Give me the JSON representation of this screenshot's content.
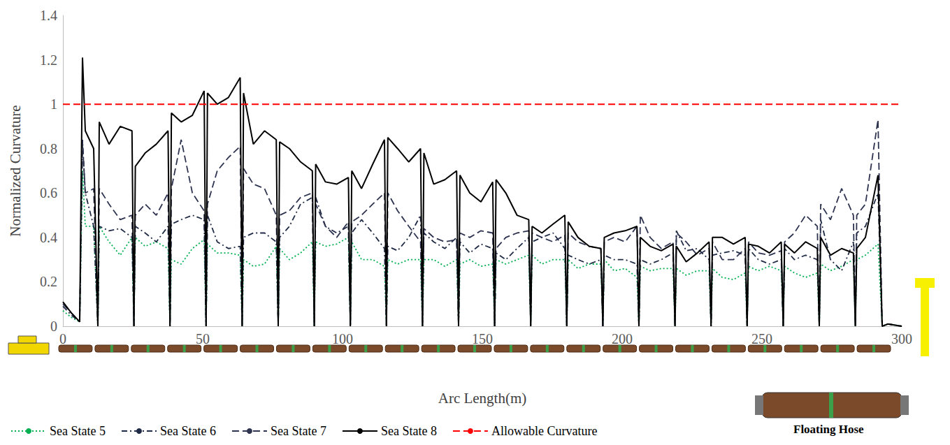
{
  "chart_data": {
    "type": "line",
    "x_label": "Arc Length(m)",
    "y_label": "Normalized Curvature",
    "annotation": "Floating Hose",
    "xlim": [
      0,
      300
    ],
    "xticks": [
      0,
      50,
      100,
      150,
      200,
      250,
      300
    ],
    "ylim": [
      0,
      1.4
    ],
    "yticks": [
      0,
      0.2,
      0.4,
      0.6,
      0.8,
      1,
      1.2,
      1.4
    ],
    "grid": false,
    "legend": "bottom",
    "x": [
      0,
      3,
      6,
      7,
      8,
      11,
      12.5,
      13,
      16.5,
      20.5,
      24.7,
      25.4,
      25.9,
      29.4,
      33.4,
      37.6,
      38.3,
      38.8,
      42.3,
      46.3,
      50.5,
      51.2,
      51.7,
      55.2,
      59.2,
      63.4,
      64.1,
      64.6,
      68.1,
      72.1,
      76.3,
      77,
      77.5,
      81,
      85,
      89.2,
      89.9,
      90.4,
      93.9,
      97.9,
      102.1,
      102.8,
      103.3,
      106.8,
      110.8,
      115,
      115.7,
      116.2,
      119.7,
      123.7,
      127.9,
      128.6,
      129.1,
      132.6,
      136.6,
      140.8,
      141.5,
      142,
      145.5,
      149.5,
      153.7,
      154.4,
      154.9,
      158.4,
      162.4,
      166.6,
      167.3,
      167.8,
      171.3,
      175.3,
      179.5,
      180.2,
      180.7,
      184.2,
      188.2,
      192.4,
      193.1,
      193.6,
      197.1,
      201.1,
      205.3,
      206,
      206.5,
      210,
      214,
      218.2,
      218.9,
      219.4,
      222.9,
      226.9,
      231.1,
      231.8,
      232.3,
      235.8,
      239.8,
      244,
      244.7,
      245.2,
      248.7,
      252.7,
      256.9,
      257.6,
      258.1,
      261.6,
      265.6,
      269.8,
      270.5,
      271,
      274.5,
      278.5,
      282.7,
      283.4,
      283.9,
      287,
      291.5,
      293,
      295,
      300
    ],
    "series": [
      {
        "name": "Sea State 5",
        "color": "#00b050",
        "line_style": "dotted",
        "values": [
          0.07,
          0.04,
          0.02,
          0.7,
          0.45,
          0.45,
          0,
          0.45,
          0.38,
          0.32,
          0.4,
          0,
          0.4,
          0.36,
          0.38,
          0.35,
          0,
          0.3,
          0.28,
          0.35,
          0.39,
          0,
          0.37,
          0.33,
          0.33,
          0.32,
          0,
          0.3,
          0.27,
          0.28,
          0.36,
          0,
          0.35,
          0.3,
          0.33,
          0.38,
          0,
          0.38,
          0.36,
          0.37,
          0.4,
          0,
          0.38,
          0.3,
          0.3,
          0.27,
          0,
          0.3,
          0.28,
          0.3,
          0.3,
          0,
          0.3,
          0.3,
          0.27,
          0.3,
          0,
          0.28,
          0.3,
          0.27,
          0.28,
          0,
          0.3,
          0.28,
          0.3,
          0.32,
          0,
          0.32,
          0.28,
          0.3,
          0.3,
          0,
          0.3,
          0.26,
          0.28,
          0.28,
          0,
          0.3,
          0.25,
          0.26,
          0.22,
          0,
          0.27,
          0.25,
          0.26,
          0.26,
          0,
          0.26,
          0.23,
          0.25,
          0.25,
          0,
          0.26,
          0.22,
          0.21,
          0.24,
          0,
          0.27,
          0.25,
          0.27,
          0.25,
          0,
          0.27,
          0.24,
          0.22,
          0.24,
          0,
          0.28,
          0.25,
          0.27,
          0.3,
          0,
          0.3,
          0.32,
          0.37,
          0,
          0.01,
          0
        ]
      },
      {
        "name": "Sea State 6",
        "color": "#1f2a44",
        "line_style": "dashdot",
        "values": [
          0.09,
          0.05,
          0.02,
          0.84,
          0.6,
          0.45,
          0,
          0.45,
          0.43,
          0.44,
          0.4,
          0,
          0.45,
          0.42,
          0.38,
          0.45,
          0,
          0.46,
          0.48,
          0.5,
          0.48,
          0,
          0.5,
          0.38,
          0.35,
          0.36,
          0,
          0.4,
          0.42,
          0.42,
          0.38,
          0,
          0.4,
          0.45,
          0.55,
          0.58,
          0,
          0.58,
          0.45,
          0.42,
          0.45,
          0,
          0.42,
          0.48,
          0.42,
          0.35,
          0,
          0.36,
          0.34,
          0.4,
          0.5,
          0,
          0.42,
          0.38,
          0.35,
          0.4,
          0,
          0.38,
          0.33,
          0.37,
          0.35,
          0,
          0.33,
          0.3,
          0.35,
          0.4,
          0,
          0.38,
          0.4,
          0.42,
          0.35,
          0,
          0.32,
          0.3,
          0.28,
          0.3,
          0,
          0.32,
          0.3,
          0.3,
          0.28,
          0,
          0.3,
          0.28,
          0.3,
          0.33,
          0,
          0.43,
          0.34,
          0.35,
          0.3,
          0,
          0.32,
          0.33,
          0.34,
          0.32,
          0,
          0.35,
          0.3,
          0.28,
          0.3,
          0,
          0.35,
          0.3,
          0.32,
          0.3,
          0,
          0.48,
          0.3,
          0.25,
          0.38,
          0,
          0.42,
          0.45,
          0.6,
          0,
          0.01,
          0
        ]
      },
      {
        "name": "Sea State 7",
        "color": "#2e3350",
        "line_style": "dashed",
        "values": [
          0.1,
          0.06,
          0.02,
          0.83,
          0.6,
          0.62,
          0,
          0.62,
          0.55,
          0.48,
          0.5,
          0,
          0.5,
          0.55,
          0.5,
          0.6,
          0,
          0.62,
          0.84,
          0.6,
          0.52,
          0,
          0.55,
          0.7,
          0.76,
          0.81,
          0,
          0.71,
          0.64,
          0.62,
          0.5,
          0,
          0.5,
          0.52,
          0.58,
          0.6,
          0,
          0.55,
          0.45,
          0.4,
          0.47,
          0,
          0.47,
          0.5,
          0.55,
          0.6,
          0,
          0.6,
          0.52,
          0.45,
          0.38,
          0,
          0.44,
          0.4,
          0.38,
          0.39,
          0,
          0.42,
          0.4,
          0.43,
          0.42,
          0,
          0.35,
          0.4,
          0.42,
          0.43,
          0,
          0.42,
          0.4,
          0.38,
          0.41,
          0,
          0.42,
          0.38,
          0.36,
          0.35,
          0,
          0.38,
          0.4,
          0.38,
          0.45,
          0,
          0.5,
          0.4,
          0.35,
          0.38,
          0,
          0.42,
          0.38,
          0.32,
          0.35,
          0,
          0.38,
          0.3,
          0.3,
          0.35,
          0,
          0.38,
          0.33,
          0.32,
          0.34,
          0,
          0.38,
          0.42,
          0.5,
          0.45,
          0,
          0.55,
          0.48,
          0.62,
          0.5,
          0,
          0.5,
          0.55,
          0.93,
          0,
          0.01,
          0
        ]
      },
      {
        "name": "Sea State 8",
        "color": "#000000",
        "line_style": "solid",
        "values": [
          0.11,
          0.06,
          0.02,
          1.21,
          0.88,
          0.8,
          0,
          0.92,
          0.82,
          0.9,
          0.88,
          0,
          0.72,
          0.78,
          0.82,
          0.88,
          0,
          0.96,
          0.92,
          0.95,
          1.06,
          0,
          1.05,
          1.0,
          1.03,
          1.12,
          0,
          1.05,
          0.82,
          0.88,
          0.84,
          0,
          0.83,
          0.8,
          0.74,
          0.7,
          0,
          0.73,
          0.65,
          0.64,
          0.67,
          0,
          0.7,
          0.62,
          0.73,
          0.84,
          0,
          0.85,
          0.8,
          0.74,
          0.8,
          0,
          0.78,
          0.64,
          0.66,
          0.7,
          0,
          0.68,
          0.6,
          0.56,
          0.65,
          0,
          0.66,
          0.6,
          0.5,
          0.48,
          0,
          0.45,
          0.42,
          0.46,
          0.5,
          0,
          0.47,
          0.4,
          0.36,
          0.35,
          0,
          0.4,
          0.42,
          0.43,
          0.45,
          0,
          0.4,
          0.36,
          0.34,
          0.37,
          0,
          0.36,
          0.29,
          0.33,
          0.38,
          0,
          0.4,
          0.4,
          0.37,
          0.4,
          0,
          0.37,
          0.36,
          0.33,
          0.38,
          0,
          0.37,
          0.33,
          0.38,
          0.35,
          0,
          0.4,
          0.32,
          0.35,
          0.33,
          0,
          0.35,
          0.4,
          0.68,
          0,
          0.01,
          0
        ]
      }
    ],
    "reference_lines": [
      {
        "name": "Allowable Curvature",
        "y": 1,
        "color": "#ff0000",
        "line_style": "dashed"
      }
    ]
  }
}
